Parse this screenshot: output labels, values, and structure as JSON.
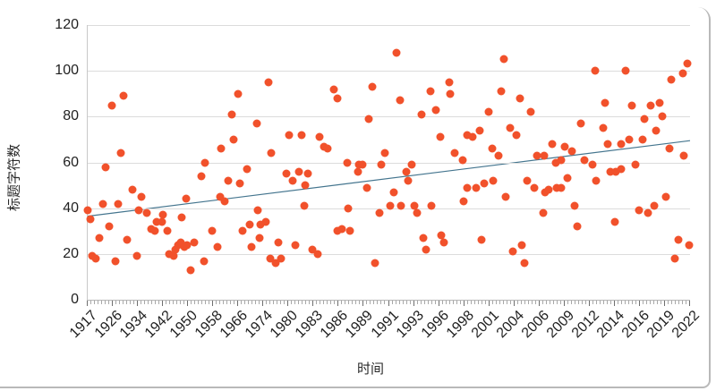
{
  "chart_data": {
    "type": "scatter",
    "title": "",
    "xlabel": "时间",
    "ylabel": "标题字符数",
    "x_axis_type": "categorical-years",
    "ylim": [
      0,
      120
    ],
    "y_ticks": [
      0,
      20,
      40,
      60,
      80,
      100,
      120
    ],
    "grid": "horizontal-on",
    "legend": "none",
    "x_tick_labels": [
      "1917",
      "1926",
      "1934",
      "1942",
      "1950",
      "1958",
      "1966",
      "1974",
      "1980",
      "1983",
      "1986",
      "1989",
      "1991",
      "1993",
      "1996",
      "1998",
      "2001",
      "2004",
      "2006",
      "2009",
      "2012",
      "2014",
      "2016",
      "2019",
      "2022"
    ],
    "minor_ticks_per_label": 7,
    "colors": {
      "point": "#f1512b",
      "trend_line": "#44758e",
      "grid_line": "#dcdcdc",
      "axis_line": "#b5b5b5",
      "tick_text": "#1f1f1f"
    },
    "trend": {
      "y_start": 36.5,
      "y_end": 69.5
    },
    "points": [
      [
        0.0,
        39
      ],
      [
        0.004,
        35
      ],
      [
        0.007,
        19
      ],
      [
        0.013,
        18
      ],
      [
        0.019,
        27
      ],
      [
        0.025,
        42
      ],
      [
        0.03,
        58
      ],
      [
        0.036,
        32
      ],
      [
        0.04,
        85
      ],
      [
        0.046,
        17
      ],
      [
        0.051,
        42
      ],
      [
        0.055,
        64
      ],
      [
        0.059,
        89
      ],
      [
        0.065,
        26
      ],
      [
        0.074,
        48
      ],
      [
        0.082,
        19
      ],
      [
        0.085,
        39
      ],
      [
        0.089,
        45
      ],
      [
        0.098,
        38
      ],
      [
        0.106,
        31
      ],
      [
        0.111,
        30
      ],
      [
        0.114,
        34
      ],
      [
        0.123,
        34
      ],
      [
        0.125,
        37
      ],
      [
        0.132,
        30
      ],
      [
        0.135,
        20
      ],
      [
        0.143,
        19
      ],
      [
        0.146,
        22
      ],
      [
        0.15,
        24
      ],
      [
        0.155,
        25
      ],
      [
        0.156,
        36
      ],
      [
        0.16,
        23
      ],
      [
        0.163,
        44
      ],
      [
        0.165,
        24
      ],
      [
        0.171,
        13
      ],
      [
        0.177,
        25
      ],
      [
        0.189,
        54
      ],
      [
        0.193,
        17
      ],
      [
        0.195,
        60
      ],
      [
        0.207,
        30
      ],
      [
        0.215,
        23
      ],
      [
        0.22,
        45
      ],
      [
        0.221,
        66
      ],
      [
        0.227,
        43
      ],
      [
        0.233,
        52
      ],
      [
        0.239,
        81
      ],
      [
        0.242,
        70
      ],
      [
        0.25,
        90
      ],
      [
        0.253,
        51
      ],
      [
        0.257,
        30
      ],
      [
        0.264,
        57
      ],
      [
        0.269,
        33
      ],
      [
        0.272,
        23
      ],
      [
        0.281,
        77
      ],
      [
        0.282,
        39
      ],
      [
        0.285,
        27
      ],
      [
        0.287,
        33
      ],
      [
        0.296,
        34
      ],
      [
        0.3,
        95
      ],
      [
        0.303,
        18
      ],
      [
        0.305,
        64
      ],
      [
        0.312,
        16
      ],
      [
        0.317,
        25
      ],
      [
        0.321,
        18
      ],
      [
        0.33,
        55
      ],
      [
        0.334,
        72
      ],
      [
        0.34,
        52
      ],
      [
        0.345,
        24
      ],
      [
        0.351,
        56
      ],
      [
        0.355,
        72
      ],
      [
        0.36,
        41
      ],
      [
        0.361,
        50
      ],
      [
        0.366,
        55
      ],
      [
        0.373,
        22
      ],
      [
        0.382,
        20
      ],
      [
        0.385,
        71
      ],
      [
        0.392,
        67
      ],
      [
        0.398,
        66
      ],
      [
        0.409,
        92
      ],
      [
        0.415,
        88
      ],
      [
        0.415,
        30
      ],
      [
        0.422,
        31
      ],
      [
        0.431,
        60
      ],
      [
        0.432,
        40
      ],
      [
        0.435,
        30
      ],
      [
        0.449,
        56
      ],
      [
        0.45,
        59
      ],
      [
        0.456,
        59
      ],
      [
        0.464,
        49
      ],
      [
        0.467,
        79
      ],
      [
        0.472,
        93
      ],
      [
        0.477,
        16
      ],
      [
        0.484,
        38
      ],
      [
        0.487,
        59
      ],
      [
        0.493,
        64
      ],
      [
        0.502,
        41
      ],
      [
        0.508,
        47
      ],
      [
        0.513,
        108
      ],
      [
        0.519,
        87
      ],
      [
        0.52,
        41
      ],
      [
        0.529,
        56
      ],
      [
        0.532,
        52
      ],
      [
        0.538,
        59
      ],
      [
        0.542,
        41
      ],
      [
        0.547,
        38
      ],
      [
        0.554,
        81
      ],
      [
        0.557,
        27
      ],
      [
        0.562,
        22
      ],
      [
        0.569,
        91
      ],
      [
        0.571,
        41
      ],
      [
        0.578,
        83
      ],
      [
        0.585,
        71
      ],
      [
        0.587,
        28
      ],
      [
        0.591,
        25
      ],
      [
        0.6,
        95
      ],
      [
        0.602,
        90
      ],
      [
        0.609,
        64
      ],
      [
        0.623,
        61
      ],
      [
        0.624,
        43
      ],
      [
        0.63,
        72
      ],
      [
        0.63,
        49
      ],
      [
        0.639,
        71
      ],
      [
        0.645,
        49
      ],
      [
        0.651,
        74
      ],
      [
        0.654,
        26
      ],
      [
        0.658,
        51
      ],
      [
        0.666,
        82
      ],
      [
        0.672,
        66
      ],
      [
        0.673,
        52
      ],
      [
        0.682,
        63
      ],
      [
        0.687,
        91
      ],
      [
        0.691,
        105
      ],
      [
        0.694,
        45
      ],
      [
        0.701,
        75
      ],
      [
        0.706,
        21
      ],
      [
        0.712,
        72
      ],
      [
        0.718,
        88
      ],
      [
        0.721,
        24
      ],
      [
        0.725,
        16
      ],
      [
        0.73,
        52
      ],
      [
        0.736,
        82
      ],
      [
        0.741,
        49
      ],
      [
        0.746,
        63
      ],
      [
        0.756,
        38
      ],
      [
        0.758,
        63
      ],
      [
        0.759,
        47
      ],
      [
        0.765,
        48
      ],
      [
        0.771,
        68
      ],
      [
        0.777,
        60
      ],
      [
        0.779,
        49
      ],
      [
        0.786,
        61
      ],
      [
        0.786,
        49
      ],
      [
        0.792,
        67
      ],
      [
        0.797,
        53
      ],
      [
        0.804,
        65
      ],
      [
        0.808,
        41
      ],
      [
        0.813,
        32
      ],
      [
        0.819,
        77
      ],
      [
        0.825,
        61
      ],
      [
        0.838,
        59
      ],
      [
        0.842,
        100
      ],
      [
        0.844,
        52
      ],
      [
        0.856,
        75
      ],
      [
        0.859,
        86
      ],
      [
        0.863,
        68
      ],
      [
        0.868,
        56
      ],
      [
        0.875,
        34
      ],
      [
        0.877,
        56
      ],
      [
        0.886,
        68
      ],
      [
        0.886,
        57
      ],
      [
        0.893,
        100
      ],
      [
        0.899,
        70
      ],
      [
        0.903,
        85
      ],
      [
        0.909,
        59
      ],
      [
        0.915,
        39
      ],
      [
        0.921,
        70
      ],
      [
        0.924,
        79
      ],
      [
        0.93,
        38
      ],
      [
        0.935,
        85
      ],
      [
        0.941,
        41
      ],
      [
        0.944,
        74
      ],
      [
        0.95,
        86
      ],
      [
        0.954,
        80
      ],
      [
        0.96,
        45
      ],
      [
        0.966,
        66
      ],
      [
        0.969,
        96
      ],
      [
        0.975,
        18
      ],
      [
        0.981,
        26
      ],
      [
        0.988,
        99
      ],
      [
        0.99,
        63
      ],
      [
        0.996,
        103
      ],
      [
        0.999,
        24
      ]
    ]
  }
}
